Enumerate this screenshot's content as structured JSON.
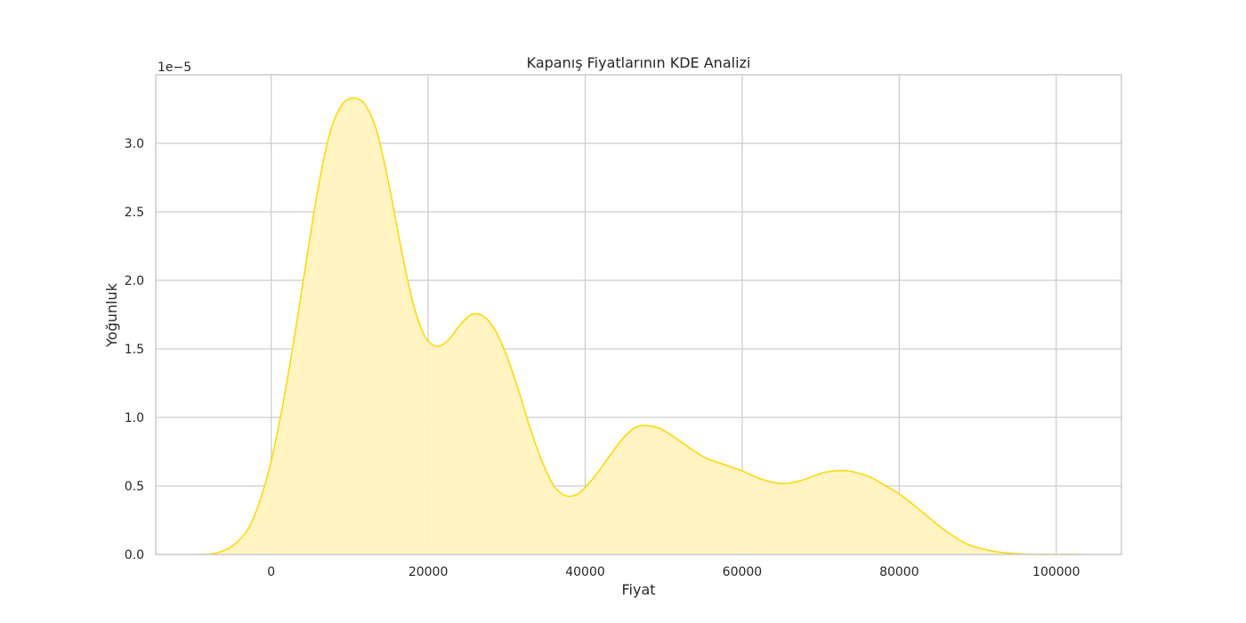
{
  "chart_data": {
    "type": "area",
    "title": "Kapanış Fiyatlarının KDE Analizi",
    "xlabel": "Fiyat",
    "ylabel": "Yoğunluk",
    "y_offset_text": "1e−5",
    "y_scale_factor": 1e-05,
    "xlim": [
      -14700,
      108300
    ],
    "ylim": [
      0,
      3.5
    ],
    "x_ticks": [
      0,
      20000,
      40000,
      60000,
      80000,
      100000
    ],
    "x_tick_labels": [
      "0",
      "20000",
      "40000",
      "60000",
      "80000",
      "100000"
    ],
    "y_ticks": [
      0.0,
      0.5,
      1.0,
      1.5,
      2.0,
      2.5,
      3.0
    ],
    "y_tick_labels": [
      "0.0",
      "0.5",
      "1.0",
      "1.5",
      "2.0",
      "2.5",
      "3.0"
    ],
    "grid": true,
    "series": [
      {
        "line_color": "#FFD700",
        "fill_color": "#FFF3BF",
        "points": [
          [
            -9000,
            0.0
          ],
          [
            -7000,
            0.01
          ],
          [
            -5000,
            0.06
          ],
          [
            -3000,
            0.18
          ],
          [
            -1500,
            0.38
          ],
          [
            0,
            0.68
          ],
          [
            1500,
            1.1
          ],
          [
            3000,
            1.6
          ],
          [
            4500,
            2.15
          ],
          [
            6000,
            2.68
          ],
          [
            7500,
            3.08
          ],
          [
            9000,
            3.28
          ],
          [
            10500,
            3.33
          ],
          [
            12000,
            3.28
          ],
          [
            13500,
            3.08
          ],
          [
            15000,
            2.7
          ],
          [
            16500,
            2.25
          ],
          [
            18000,
            1.85
          ],
          [
            19500,
            1.6
          ],
          [
            21000,
            1.52
          ],
          [
            22500,
            1.56
          ],
          [
            24000,
            1.67
          ],
          [
            25500,
            1.75
          ],
          [
            27000,
            1.74
          ],
          [
            28500,
            1.64
          ],
          [
            30000,
            1.45
          ],
          [
            31500,
            1.2
          ],
          [
            33000,
            0.92
          ],
          [
            34500,
            0.68
          ],
          [
            36000,
            0.5
          ],
          [
            37500,
            0.43
          ],
          [
            39000,
            0.44
          ],
          [
            40500,
            0.52
          ],
          [
            42000,
            0.63
          ],
          [
            43500,
            0.75
          ],
          [
            45000,
            0.86
          ],
          [
            46500,
            0.93
          ],
          [
            48000,
            0.94
          ],
          [
            49500,
            0.92
          ],
          [
            51000,
            0.87
          ],
          [
            52500,
            0.81
          ],
          [
            54000,
            0.75
          ],
          [
            55500,
            0.7
          ],
          [
            57000,
            0.67
          ],
          [
            58500,
            0.64
          ],
          [
            60000,
            0.61
          ],
          [
            61500,
            0.57
          ],
          [
            63000,
            0.54
          ],
          [
            64500,
            0.52
          ],
          [
            66000,
            0.52
          ],
          [
            67500,
            0.54
          ],
          [
            69000,
            0.57
          ],
          [
            70500,
            0.6
          ],
          [
            72000,
            0.61
          ],
          [
            73500,
            0.61
          ],
          [
            75000,
            0.59
          ],
          [
            76500,
            0.56
          ],
          [
            78000,
            0.51
          ],
          [
            79500,
            0.46
          ],
          [
            81000,
            0.4
          ],
          [
            82500,
            0.33
          ],
          [
            84000,
            0.26
          ],
          [
            85500,
            0.19
          ],
          [
            87000,
            0.13
          ],
          [
            88500,
            0.08
          ],
          [
            90000,
            0.05
          ],
          [
            91500,
            0.03
          ],
          [
            93000,
            0.015
          ],
          [
            95000,
            0.006
          ],
          [
            97000,
            0.002
          ],
          [
            100000,
            0.0
          ],
          [
            103000,
            0.0
          ]
        ]
      }
    ]
  }
}
